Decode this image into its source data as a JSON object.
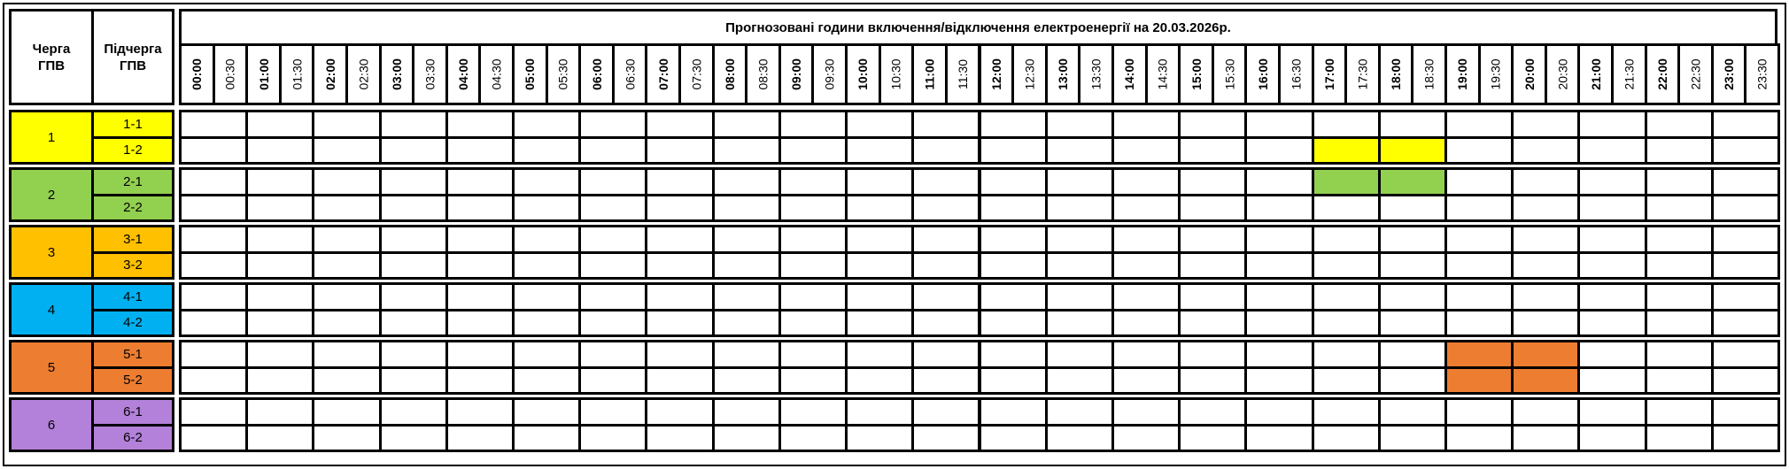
{
  "header": {
    "queue_label": "Черга ГПВ",
    "subqueue_label": "Підчерга ГПВ",
    "title": "Прогнозовані години включення/відключення електроенергії на 20.03.2026р."
  },
  "time_slots": [
    "00:00",
    "00:30",
    "01:00",
    "01:30",
    "02:00",
    "02:30",
    "03:00",
    "03:30",
    "04:00",
    "04:30",
    "05:00",
    "05:30",
    "06:00",
    "06:30",
    "07:00",
    "07:30",
    "08:00",
    "08:30",
    "09:00",
    "09:30",
    "10:00",
    "10:30",
    "11:00",
    "11:30",
    "12:00",
    "12:30",
    "13:00",
    "13:30",
    "14:00",
    "14:30",
    "15:00",
    "15:30",
    "16:00",
    "16:30",
    "17:00",
    "17:30",
    "18:00",
    "18:30",
    "19:00",
    "19:30",
    "20:00",
    "20:30",
    "21:00",
    "21:30",
    "22:00",
    "22:30",
    "23:00",
    "23:30"
  ],
  "groups": [
    {
      "label": "1",
      "color": "#FFFF00",
      "subgroups": [
        {
          "label": "1-1",
          "outage_hours": []
        },
        {
          "label": "1-2",
          "outage_hours": [
            17,
            18
          ]
        }
      ]
    },
    {
      "label": "2",
      "color": "#92D050",
      "subgroups": [
        {
          "label": "2-1",
          "outage_hours": [
            17,
            18
          ]
        },
        {
          "label": "2-2",
          "outage_hours": []
        }
      ]
    },
    {
      "label": "3",
      "color": "#FFC000",
      "subgroups": [
        {
          "label": "3-1",
          "outage_hours": []
        },
        {
          "label": "3-2",
          "outage_hours": []
        }
      ]
    },
    {
      "label": "4",
      "color": "#00B0F0",
      "subgroups": [
        {
          "label": "4-1",
          "outage_hours": []
        },
        {
          "label": "4-2",
          "outage_hours": []
        }
      ]
    },
    {
      "label": "5",
      "color": "#ED7D31",
      "subgroups": [
        {
          "label": "5-1",
          "outage_hours": [
            19,
            20
          ]
        },
        {
          "label": "5-2",
          "outage_hours": [
            19,
            20
          ]
        }
      ]
    },
    {
      "label": "6",
      "color": "#B381D9",
      "subgroups": [
        {
          "label": "6-1",
          "outage_hours": []
        },
        {
          "label": "6-2",
          "outage_hours": []
        }
      ]
    }
  ]
}
